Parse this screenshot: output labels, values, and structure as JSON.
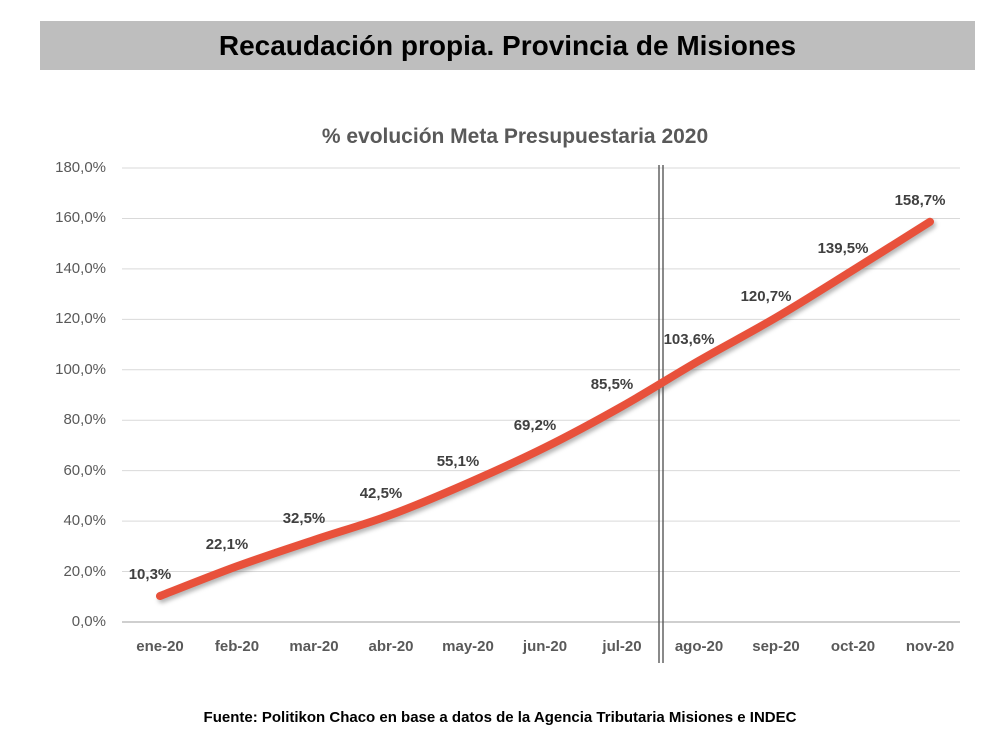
{
  "header": {
    "title": "Recaudación propia. Provincia de Misiones"
  },
  "footer": {
    "source": "Fuente: Politikon Chaco en base a datos de la Agencia Tributaria Misiones e INDEC"
  },
  "colors": {
    "title_bar_bg": "#bebebe",
    "line": "#e8513b",
    "gridline": "#d9d9d9",
    "axis_line": "#bfbfbf",
    "separator": "#595959",
    "axis_text": "#595959",
    "data_label_text": "#404040"
  },
  "chart_data": {
    "type": "line",
    "title": "% evolución Meta Presupuestaria 2020",
    "categories": [
      "ene-20",
      "feb-20",
      "mar-20",
      "abr-20",
      "may-20",
      "jun-20",
      "jul-20",
      "ago-20",
      "sep-20",
      "oct-20",
      "nov-20"
    ],
    "values": [
      10.3,
      22.1,
      32.5,
      42.5,
      55.1,
      69.2,
      85.5,
      103.6,
      120.7,
      139.5,
      158.7
    ],
    "value_labels": [
      "10,3%",
      "22,1%",
      "32,5%",
      "42,5%",
      "55,1%",
      "69,2%",
      "85,5%",
      "103,6%",
      "120,7%",
      "139,5%",
      "158,7%"
    ],
    "xlabel": "",
    "ylabel": "",
    "ylim": [
      0,
      180
    ],
    "y_tick_step": 20,
    "y_tick_labels": [
      "0,0%",
      "20,0%",
      "40,0%",
      "60,0%",
      "80,0%",
      "100,0%",
      "120,0%",
      "140,0%",
      "160,0%",
      "180,0%"
    ],
    "grid": "horizontal",
    "legend": "none",
    "annotations": [
      {
        "type": "vertical-double-line",
        "between": [
          "jul-20",
          "ago-20"
        ]
      }
    ]
  }
}
